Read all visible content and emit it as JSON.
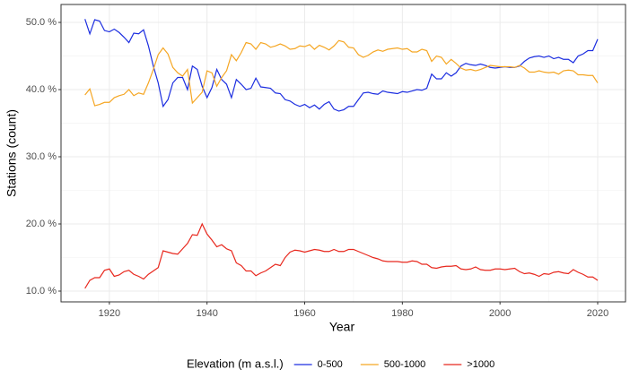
{
  "chart_data": {
    "type": "line",
    "y_label": "Stations (count)",
    "x_label": "Year",
    "legend_title": "Elevation (m a.s.l.)",
    "legend": "bottom",
    "grid": true,
    "x": [
      1915,
      1916,
      1917,
      1918,
      1919,
      1920,
      1921,
      1922,
      1923,
      1924,
      1925,
      1926,
      1927,
      1928,
      1929,
      1930,
      1931,
      1932,
      1933,
      1934,
      1935,
      1936,
      1937,
      1938,
      1939,
      1940,
      1941,
      1942,
      1943,
      1944,
      1945,
      1946,
      1947,
      1948,
      1949,
      1950,
      1951,
      1952,
      1953,
      1954,
      1955,
      1956,
      1957,
      1958,
      1959,
      1960,
      1961,
      1962,
      1963,
      1964,
      1965,
      1966,
      1967,
      1968,
      1969,
      1970,
      1971,
      1972,
      1973,
      1974,
      1975,
      1976,
      1977,
      1978,
      1979,
      1980,
      1981,
      1982,
      1983,
      1984,
      1985,
      1986,
      1987,
      1988,
      1989,
      1990,
      1991,
      1992,
      1993,
      1994,
      1995,
      1996,
      1997,
      1998,
      1999,
      2000,
      2001,
      2002,
      2003,
      2004,
      2005,
      2006,
      2007,
      2008,
      2009,
      2010,
      2011,
      2012,
      2013,
      2014,
      2015,
      2016,
      2017,
      2018,
      2019,
      2020
    ],
    "series": [
      {
        "name": "0-500",
        "color": "#1c2ee0",
        "values": [
          50.5,
          48.3,
          50.4,
          50.2,
          48.8,
          48.6,
          49.0,
          48.5,
          47.8,
          47.0,
          48.4,
          48.3,
          48.9,
          46.5,
          43.5,
          41.0,
          37.5,
          38.5,
          41.0,
          41.8,
          41.8,
          40.0,
          43.5,
          43.0,
          40.5,
          38.8,
          40.3,
          43.0,
          41.5,
          40.8,
          38.8,
          41.5,
          40.8,
          40.0,
          40.2,
          41.7,
          40.4,
          40.3,
          40.2,
          39.5,
          39.4,
          38.5,
          38.3,
          37.8,
          37.5,
          37.8,
          37.3,
          37.7,
          37.1,
          37.8,
          38.2,
          37.1,
          36.8,
          37.0,
          37.5,
          37.5,
          38.5,
          39.5,
          39.6,
          39.4,
          39.3,
          39.8,
          39.6,
          39.5,
          39.4,
          39.7,
          39.6,
          39.8,
          40.0,
          39.9,
          40.2,
          42.3,
          41.6,
          41.6,
          42.5,
          42.0,
          42.5,
          43.5,
          43.9,
          43.7,
          43.6,
          43.8,
          43.6,
          43.3,
          43.2,
          43.3,
          43.4,
          43.3,
          43.3,
          43.5,
          44.2,
          44.7,
          44.9,
          45.0,
          44.8,
          45.0,
          44.6,
          44.8,
          44.5,
          44.5,
          44.0,
          45.0,
          45.3,
          45.8,
          45.8,
          47.5
        ]
      },
      {
        "name": "500-1000",
        "color": "#f5a623",
        "values": [
          39.2,
          40.1,
          37.6,
          37.8,
          38.1,
          38.1,
          38.8,
          39.1,
          39.3,
          40.0,
          39.1,
          39.5,
          39.3,
          41.0,
          43.0,
          45.2,
          46.2,
          45.3,
          43.3,
          42.5,
          42.0,
          43.0,
          38.0,
          38.8,
          39.6,
          42.8,
          42.5,
          40.5,
          41.8,
          42.8,
          45.2,
          44.3,
          45.5,
          47.0,
          46.8,
          46.0,
          47.0,
          46.8,
          46.3,
          46.5,
          46.8,
          46.5,
          46.0,
          46.1,
          46.5,
          46.4,
          46.7,
          46.0,
          46.6,
          46.3,
          45.9,
          46.5,
          47.3,
          47.1,
          46.3,
          46.2,
          45.2,
          44.8,
          45.1,
          45.6,
          45.9,
          45.7,
          46.0,
          46.1,
          46.2,
          46.0,
          46.1,
          45.6,
          45.6,
          46.0,
          45.8,
          44.2,
          45.0,
          44.8,
          43.8,
          44.5,
          43.9,
          43.2,
          42.9,
          43.0,
          42.8,
          43.0,
          43.3,
          43.6,
          43.5,
          43.4,
          43.4,
          43.4,
          43.3,
          43.6,
          43.2,
          42.6,
          42.6,
          42.8,
          42.6,
          42.5,
          42.6,
          42.3,
          42.8,
          42.9,
          42.8,
          42.2,
          42.2,
          42.1,
          42.1,
          41.0
        ]
      },
      {
        "name": ">1000",
        "color": "#e8281e",
        "values": [
          10.4,
          11.6,
          12.0,
          12.0,
          13.1,
          13.3,
          12.2,
          12.4,
          12.9,
          13.1,
          12.5,
          12.2,
          11.8,
          12.5,
          13.0,
          13.5,
          16.0,
          15.8,
          15.6,
          15.5,
          16.3,
          17.1,
          18.4,
          18.3,
          20.0,
          18.5,
          17.6,
          16.6,
          16.9,
          16.3,
          16.0,
          14.2,
          13.8,
          13.0,
          13.0,
          12.3,
          12.7,
          13.0,
          13.5,
          14.0,
          13.8,
          15.0,
          15.8,
          16.1,
          16.0,
          15.8,
          16.0,
          16.2,
          16.1,
          15.9,
          15.9,
          16.2,
          15.9,
          15.9,
          16.2,
          16.2,
          15.9,
          15.6,
          15.3,
          15.0,
          14.8,
          14.5,
          14.4,
          14.4,
          14.4,
          14.3,
          14.3,
          14.5,
          14.4,
          14.0,
          14.0,
          13.5,
          13.4,
          13.6,
          13.7,
          13.7,
          13.8,
          13.3,
          13.2,
          13.3,
          13.6,
          13.2,
          13.1,
          13.1,
          13.3,
          13.3,
          13.2,
          13.3,
          13.4,
          12.9,
          12.6,
          12.7,
          12.5,
          12.2,
          12.6,
          12.5,
          12.8,
          12.9,
          12.7,
          12.6,
          13.2,
          12.8,
          12.5,
          12.1,
          12.1,
          11.6
        ]
      }
    ],
    "xlim": [
      1910.1,
      2025.7
    ],
    "xticks": [
      1920,
      1940,
      1960,
      1980,
      2000,
      2020
    ],
    "ylim": [
      8.4,
      52.67
    ],
    "yticks": [
      {
        "value": 10,
        "label": "10.0 %"
      },
      {
        "value": 20,
        "label": "20.0 %"
      },
      {
        "value": 30,
        "label": "30.0 %"
      },
      {
        "value": 40,
        "label": "40.0 %"
      },
      {
        "value": 50,
        "label": "50.0 %"
      }
    ]
  }
}
